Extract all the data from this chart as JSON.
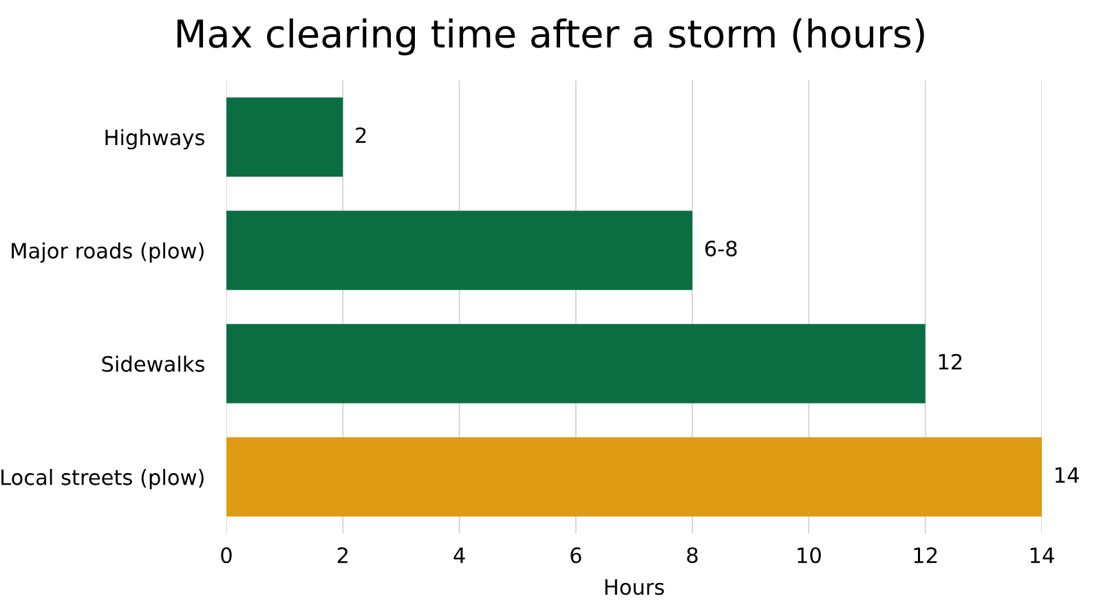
{
  "chart_data": {
    "type": "bar",
    "orientation": "horizontal",
    "title": "Max clearing time after a storm (hours)",
    "xlabel": "Hours",
    "categories": [
      "Highways",
      "Major roads (plow)",
      "Sidewalks",
      "Local streets (plow)"
    ],
    "values": [
      2,
      8,
      12,
      14
    ],
    "value_labels": [
      "2",
      "6-8",
      "12",
      "14"
    ],
    "colors": [
      "#0b6e42",
      "#0b6e42",
      "#0b6e42",
      "#e09b14"
    ],
    "xlim": [
      0,
      14
    ],
    "xticks": [
      0,
      2,
      4,
      6,
      8,
      10,
      12,
      14
    ],
    "grid": "x"
  }
}
